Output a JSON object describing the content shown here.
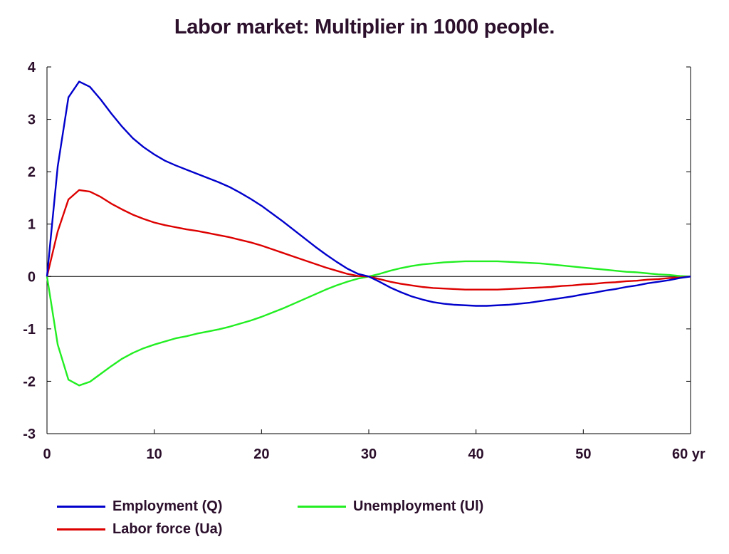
{
  "chart_data": {
    "type": "line",
    "title": "Labor market: Multiplier in 1000 people.",
    "xlabel": "",
    "ylabel": "",
    "x_tick_labels": [
      "0",
      "10",
      "20",
      "30",
      "40",
      "50",
      "60 yr"
    ],
    "x_ticks": [
      0,
      10,
      20,
      30,
      40,
      50,
      60
    ],
    "y_ticks": [
      -3,
      -2,
      -1,
      0,
      1,
      2,
      3,
      4
    ],
    "y_tick_labels": [
      "-3",
      "-2",
      "-1",
      "0",
      "1",
      "2",
      "3",
      "4"
    ],
    "xlim": [
      0,
      60
    ],
    "ylim": [
      -3,
      4
    ],
    "grid": false,
    "zero_line": true,
    "legend_position": "bottom",
    "series": [
      {
        "name": "Employment (Q)",
        "color": "#0000cc",
        "x": [
          0,
          1,
          2,
          3,
          4,
          5,
          6,
          7,
          8,
          9,
          10,
          11,
          12,
          13,
          14,
          15,
          16,
          17,
          18,
          19,
          20,
          21,
          22,
          23,
          24,
          25,
          26,
          27,
          28,
          29,
          30,
          31,
          32,
          33,
          34,
          35,
          36,
          37,
          38,
          39,
          40,
          41,
          42,
          43,
          44,
          45,
          46,
          47,
          48,
          49,
          50,
          51,
          52,
          53,
          54,
          55,
          56,
          57,
          58,
          59,
          60
        ],
        "values": [
          0,
          2.1,
          3.42,
          3.72,
          3.62,
          3.38,
          3.11,
          2.86,
          2.64,
          2.47,
          2.33,
          2.21,
          2.12,
          2.04,
          1.96,
          1.88,
          1.8,
          1.71,
          1.6,
          1.48,
          1.35,
          1.2,
          1.05,
          0.89,
          0.73,
          0.57,
          0.42,
          0.28,
          0.15,
          0.05,
          0,
          -0.1,
          -0.21,
          -0.3,
          -0.38,
          -0.44,
          -0.49,
          -0.52,
          -0.54,
          -0.55,
          -0.56,
          -0.56,
          -0.55,
          -0.54,
          -0.52,
          -0.5,
          -0.47,
          -0.44,
          -0.41,
          -0.38,
          -0.34,
          -0.31,
          -0.27,
          -0.24,
          -0.2,
          -0.17,
          -0.13,
          -0.1,
          -0.07,
          -0.03,
          0
        ]
      },
      {
        "name": "Labor force (Ua)",
        "color": "#dd0000",
        "x": [
          0,
          1,
          2,
          3,
          4,
          5,
          6,
          7,
          8,
          9,
          10,
          11,
          12,
          13,
          14,
          15,
          16,
          17,
          18,
          19,
          20,
          21,
          22,
          23,
          24,
          25,
          26,
          27,
          28,
          29,
          30,
          31,
          32,
          33,
          34,
          35,
          36,
          37,
          38,
          39,
          40,
          41,
          42,
          43,
          44,
          45,
          46,
          47,
          48,
          49,
          50,
          51,
          52,
          53,
          54,
          55,
          56,
          57,
          58,
          59,
          60
        ],
        "values": [
          0,
          0.86,
          1.47,
          1.65,
          1.62,
          1.52,
          1.39,
          1.28,
          1.18,
          1.1,
          1.03,
          0.98,
          0.94,
          0.9,
          0.87,
          0.83,
          0.79,
          0.75,
          0.7,
          0.65,
          0.59,
          0.52,
          0.45,
          0.38,
          0.31,
          0.24,
          0.17,
          0.11,
          0.05,
          0.01,
          0,
          -0.05,
          -0.1,
          -0.14,
          -0.17,
          -0.2,
          -0.22,
          -0.23,
          -0.24,
          -0.25,
          -0.25,
          -0.25,
          -0.25,
          -0.24,
          -0.23,
          -0.22,
          -0.21,
          -0.2,
          -0.18,
          -0.17,
          -0.15,
          -0.14,
          -0.12,
          -0.11,
          -0.09,
          -0.08,
          -0.06,
          -0.05,
          -0.03,
          -0.02,
          0
        ]
      },
      {
        "name": "Unemployment (Ul)",
        "color": "#22ee22",
        "x": [
          0,
          1,
          2,
          3,
          4,
          5,
          6,
          7,
          8,
          9,
          10,
          11,
          12,
          13,
          14,
          15,
          16,
          17,
          18,
          19,
          20,
          21,
          22,
          23,
          24,
          25,
          26,
          27,
          28,
          29,
          30,
          31,
          32,
          33,
          34,
          35,
          36,
          37,
          38,
          39,
          40,
          41,
          42,
          43,
          44,
          45,
          46,
          47,
          48,
          49,
          50,
          51,
          52,
          53,
          54,
          55,
          56,
          57,
          58,
          59,
          60
        ],
        "values": [
          0,
          -1.3,
          -1.97,
          -2.08,
          -2.01,
          -1.86,
          -1.71,
          -1.57,
          -1.46,
          -1.37,
          -1.3,
          -1.24,
          -1.18,
          -1.14,
          -1.09,
          -1.05,
          -1.01,
          -0.96,
          -0.9,
          -0.84,
          -0.77,
          -0.69,
          -0.61,
          -0.52,
          -0.43,
          -0.34,
          -0.25,
          -0.17,
          -0.1,
          -0.04,
          0,
          0.05,
          0.11,
          0.16,
          0.2,
          0.23,
          0.25,
          0.27,
          0.28,
          0.29,
          0.29,
          0.29,
          0.29,
          0.28,
          0.27,
          0.26,
          0.25,
          0.23,
          0.21,
          0.19,
          0.17,
          0.15,
          0.13,
          0.11,
          0.09,
          0.08,
          0.06,
          0.04,
          0.03,
          0.01,
          0
        ]
      }
    ]
  }
}
